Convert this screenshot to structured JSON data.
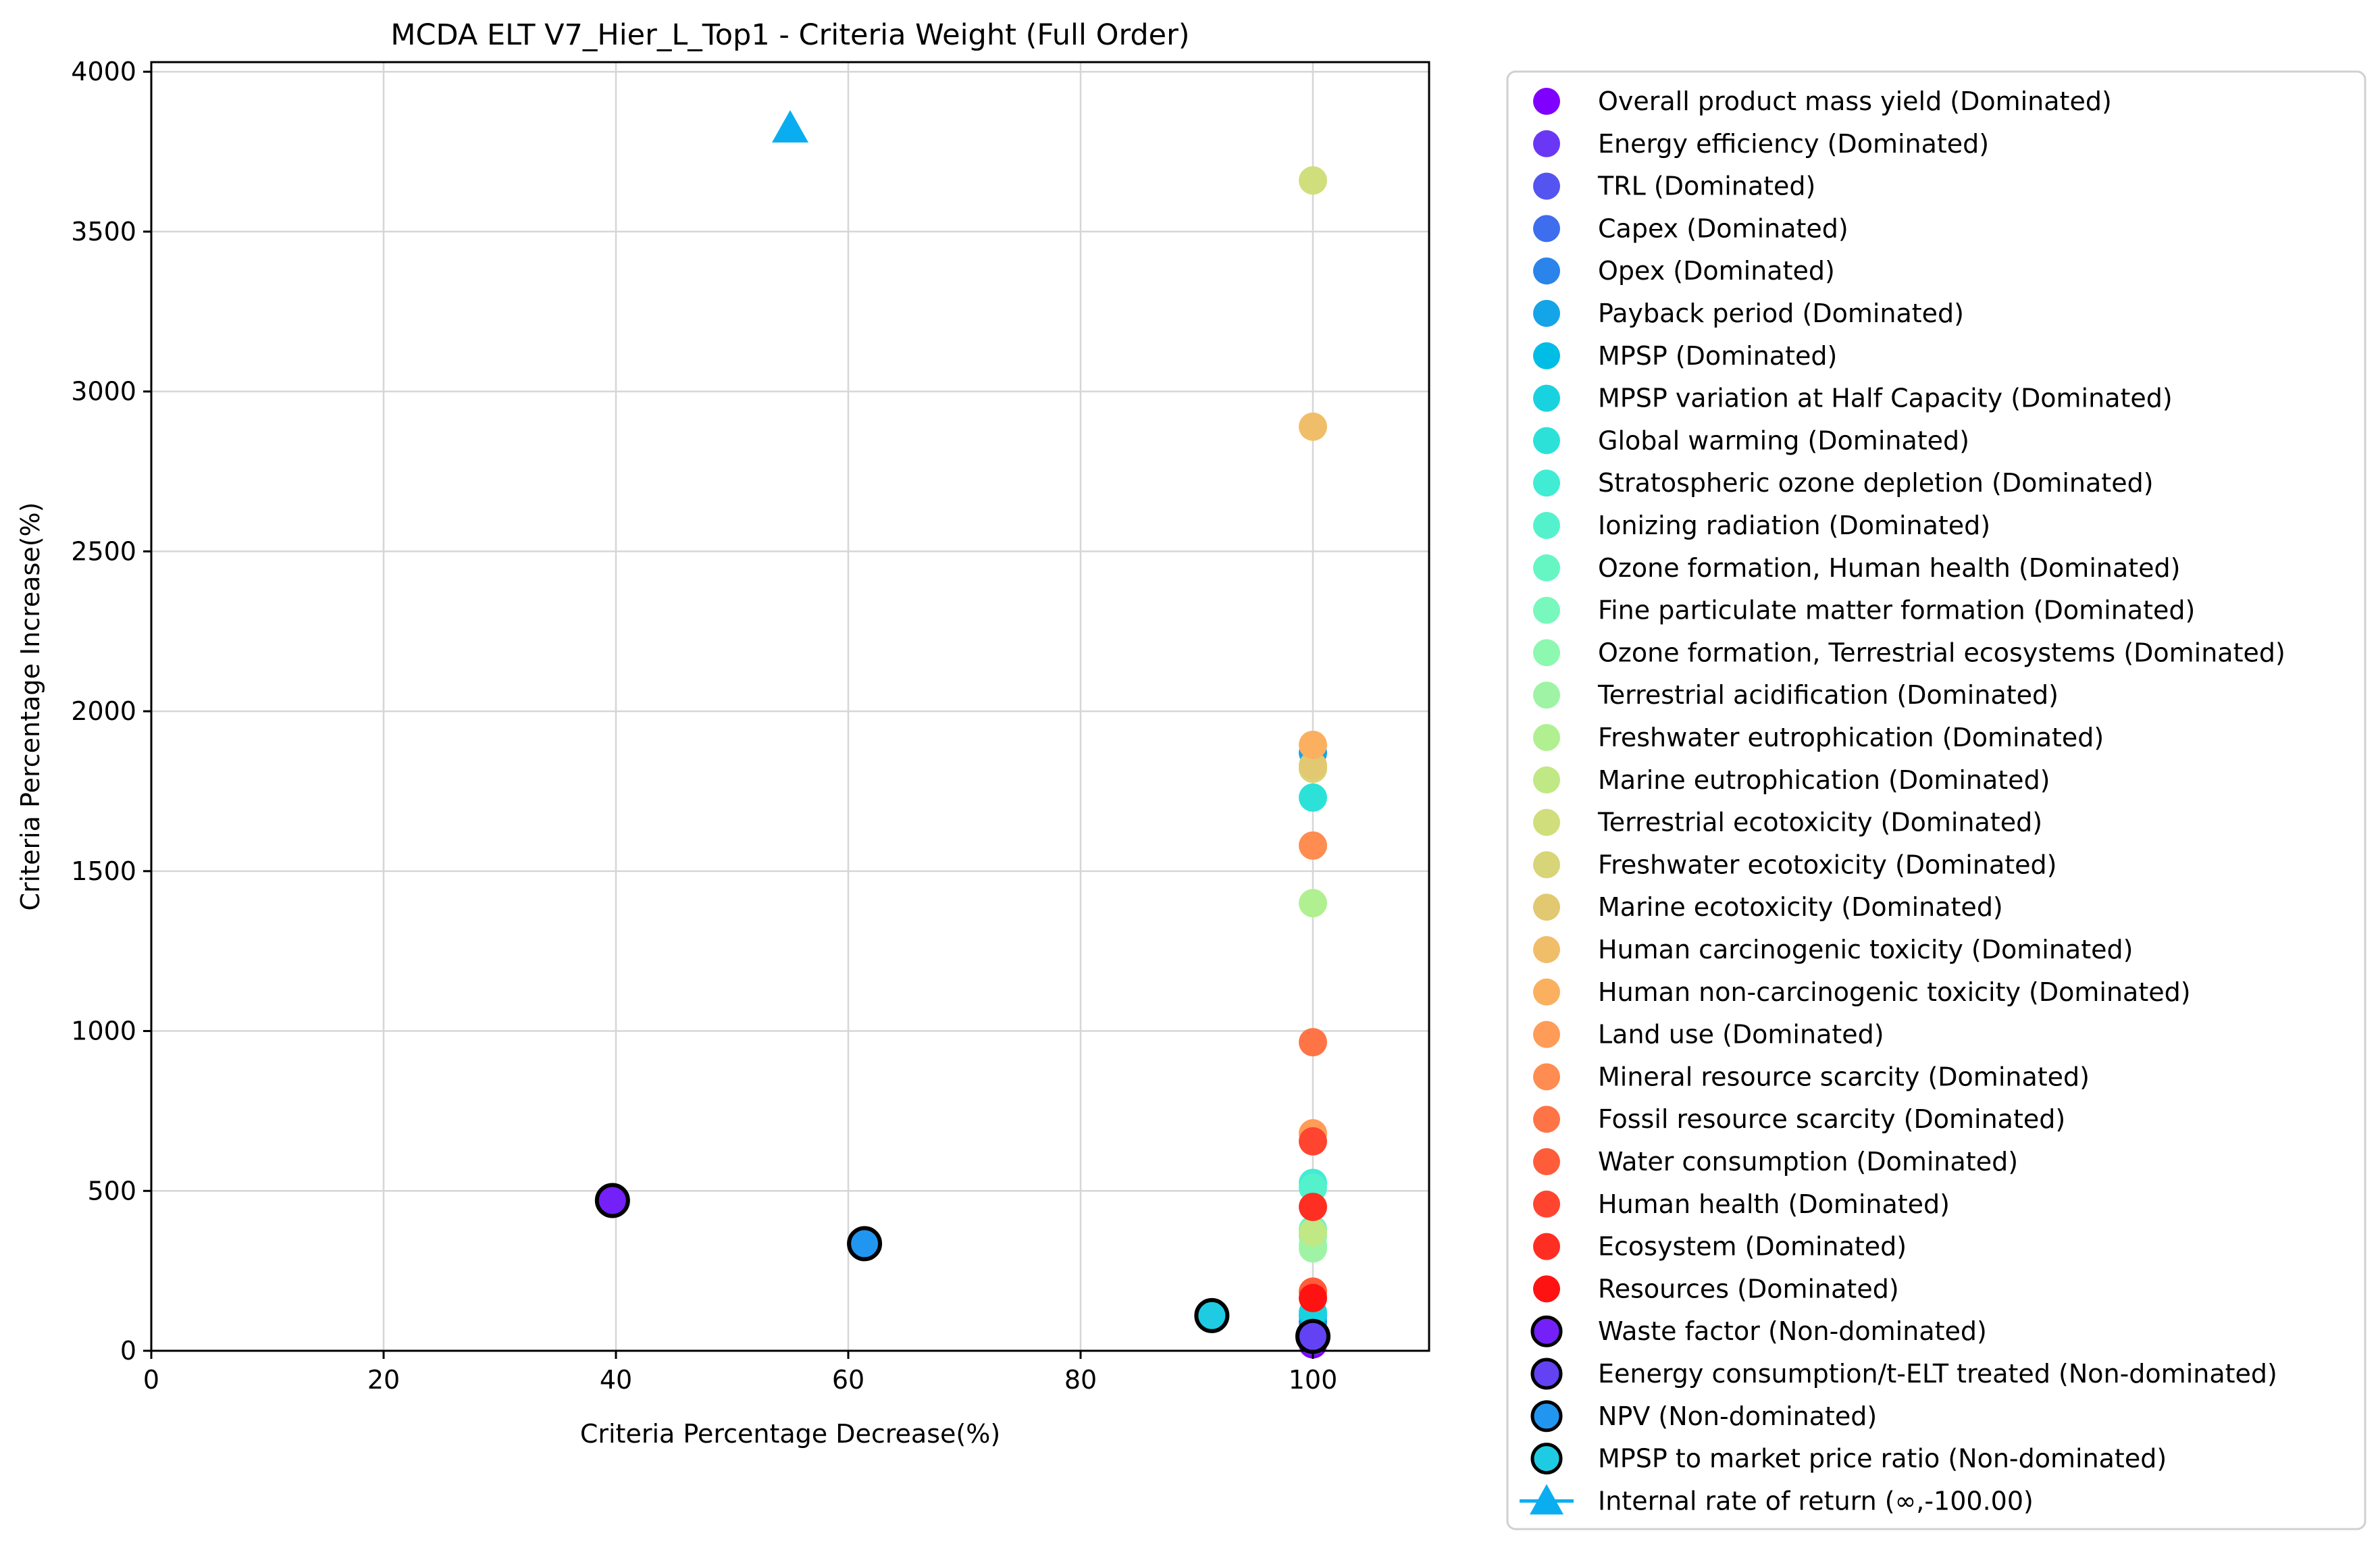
{
  "chart_data": {
    "type": "scatter",
    "title": "MCDA ELT V7_Hier_L_Top1 - Criteria Weight (Full Order)",
    "xlabel": "Criteria Percentage Decrease(%)",
    "ylabel": "Criteria Percentage Increase(%)",
    "xlim": [
      0,
      110
    ],
    "ylim": [
      0,
      4030
    ],
    "xticks": [
      0,
      20,
      40,
      60,
      80,
      100
    ],
    "yticks": [
      0,
      500,
      1000,
      1500,
      2000,
      2500,
      3000,
      3500,
      4000
    ],
    "grid": true,
    "legend_position": "outside-right",
    "series": [
      {
        "name": "Overall product mass yield (Dominated)",
        "color": "#8000ff",
        "marker": "circle",
        "non_dominated": false,
        "x": 100,
        "y": 20
      },
      {
        "name": "Energy efficiency (Dominated)",
        "color": "#6a38f5",
        "marker": "circle",
        "non_dominated": false,
        "x": 100,
        "y": 30
      },
      {
        "name": "TRL (Dominated)",
        "color": "#5454f0",
        "marker": "circle",
        "non_dominated": false,
        "x": 100,
        "y": 50
      },
      {
        "name": "Capex (Dominated)",
        "color": "#3e6ded",
        "marker": "circle",
        "non_dominated": false,
        "x": 100,
        "y": 70
      },
      {
        "name": "Opex (Dominated)",
        "color": "#2a84ea",
        "marker": "circle",
        "non_dominated": false,
        "x": 100,
        "y": 90
      },
      {
        "name": "Payback period (Dominated)",
        "color": "#14a4e8",
        "marker": "circle",
        "non_dominated": false,
        "x": 100,
        "y": 1870
      },
      {
        "name": "MPSP (Dominated)",
        "color": "#00bde5",
        "marker": "circle",
        "non_dominated": false,
        "x": 100,
        "y": 110
      },
      {
        "name": "MPSP variation at Half Capacity (Dominated)",
        "color": "#18d3df",
        "marker": "circle",
        "non_dominated": false,
        "x": 100,
        "y": 120
      },
      {
        "name": "Global warming (Dominated)",
        "color": "#2ce2d8",
        "marker": "circle",
        "non_dominated": false,
        "x": 100,
        "y": 1730
      },
      {
        "name": "Stratospheric ozone depletion (Dominated)",
        "color": "#40ecd4",
        "marker": "circle",
        "non_dominated": false,
        "x": 100,
        "y": 525
      },
      {
        "name": "Ionizing radiation (Dominated)",
        "color": "#54f2cc",
        "marker": "circle",
        "non_dominated": false,
        "x": 100,
        "y": 510
      },
      {
        "name": "Ozone formation, Human health (Dominated)",
        "color": "#66f6c4",
        "marker": "circle",
        "non_dominated": false,
        "x": 100,
        "y": 380
      },
      {
        "name": "Fine particulate matter formation (Dominated)",
        "color": "#78f8bc",
        "marker": "circle",
        "non_dominated": false,
        "x": 100,
        "y": 360
      },
      {
        "name": "Ozone formation, Terrestrial ecosystems (Dominated)",
        "color": "#8cf8b0",
        "marker": "circle",
        "non_dominated": false,
        "x": 100,
        "y": 330
      },
      {
        "name": "Terrestrial acidification (Dominated)",
        "color": "#9ef4a4",
        "marker": "circle",
        "non_dominated": false,
        "x": 100,
        "y": 320
      },
      {
        "name": "Freshwater eutrophication (Dominated)",
        "color": "#b0f090",
        "marker": "circle",
        "non_dominated": false,
        "x": 100,
        "y": 1400
      },
      {
        "name": "Marine eutrophication (Dominated)",
        "color": "#c0e884",
        "marker": "circle",
        "non_dominated": false,
        "x": 100,
        "y": 370
      },
      {
        "name": "Terrestrial ecotoxicity (Dominated)",
        "color": "#d0de7c",
        "marker": "circle",
        "non_dominated": false,
        "x": 100,
        "y": 3660
      },
      {
        "name": "Freshwater ecotoxicity (Dominated)",
        "color": "#d8d478",
        "marker": "circle",
        "non_dominated": false,
        "x": 100,
        "y": 1820
      },
      {
        "name": "Marine ecotoxicity (Dominated)",
        "color": "#e2c870",
        "marker": "circle",
        "non_dominated": false,
        "x": 100,
        "y": 1830
      },
      {
        "name": "Human carcinogenic toxicity (Dominated)",
        "color": "#f0be68",
        "marker": "circle",
        "non_dominated": false,
        "x": 100,
        "y": 2890
      },
      {
        "name": "Human non-carcinogenic toxicity (Dominated)",
        "color": "#fbb060",
        "marker": "circle",
        "non_dominated": false,
        "x": 100,
        "y": 1895
      },
      {
        "name": "Land use (Dominated)",
        "color": "#ff9c58",
        "marker": "circle",
        "non_dominated": false,
        "x": 100,
        "y": 680
      },
      {
        "name": "Mineral resource scarcity (Dominated)",
        "color": "#ff8c50",
        "marker": "circle",
        "non_dominated": false,
        "x": 100,
        "y": 1580
      },
      {
        "name": "Fossil resource scarcity (Dominated)",
        "color": "#ff7446",
        "marker": "circle",
        "non_dominated": false,
        "x": 100,
        "y": 965
      },
      {
        "name": "Water consumption (Dominated)",
        "color": "#ff5c3a",
        "marker": "circle",
        "non_dominated": false,
        "x": 100,
        "y": 185
      },
      {
        "name": "Human health (Dominated)",
        "color": "#ff4430",
        "marker": "circle",
        "non_dominated": false,
        "x": 100,
        "y": 655
      },
      {
        "name": "Ecosystem (Dominated)",
        "color": "#ff2e22",
        "marker": "circle",
        "non_dominated": false,
        "x": 100,
        "y": 450
      },
      {
        "name": "Resources (Dominated)",
        "color": "#ff1212",
        "marker": "circle",
        "non_dominated": false,
        "x": 100,
        "y": 165
      },
      {
        "name": "Waste factor (Non-dominated)",
        "color": "#7420f8",
        "marker": "circle",
        "non_dominated": true,
        "x": 39.7,
        "y": 470
      },
      {
        "name": "Eenergy consumption/t-ELT treated (Non-dominated)",
        "color": "#6242f3",
        "marker": "circle",
        "non_dominated": true,
        "x": 100,
        "y": 45
      },
      {
        "name": "NPV (Non-dominated)",
        "color": "#2196f0",
        "marker": "circle",
        "non_dominated": true,
        "x": 61.4,
        "y": 335
      },
      {
        "name": "MPSP to market price ratio (Non-dominated)",
        "color": "#1ecbe2",
        "marker": "circle",
        "non_dominated": true,
        "x": 91.3,
        "y": 110
      },
      {
        "name": "Internal rate of return (∞,-100.00)",
        "color": "#0aaef0",
        "marker": "triangle",
        "non_dominated": false,
        "x": 55,
        "y": 3825
      }
    ]
  }
}
